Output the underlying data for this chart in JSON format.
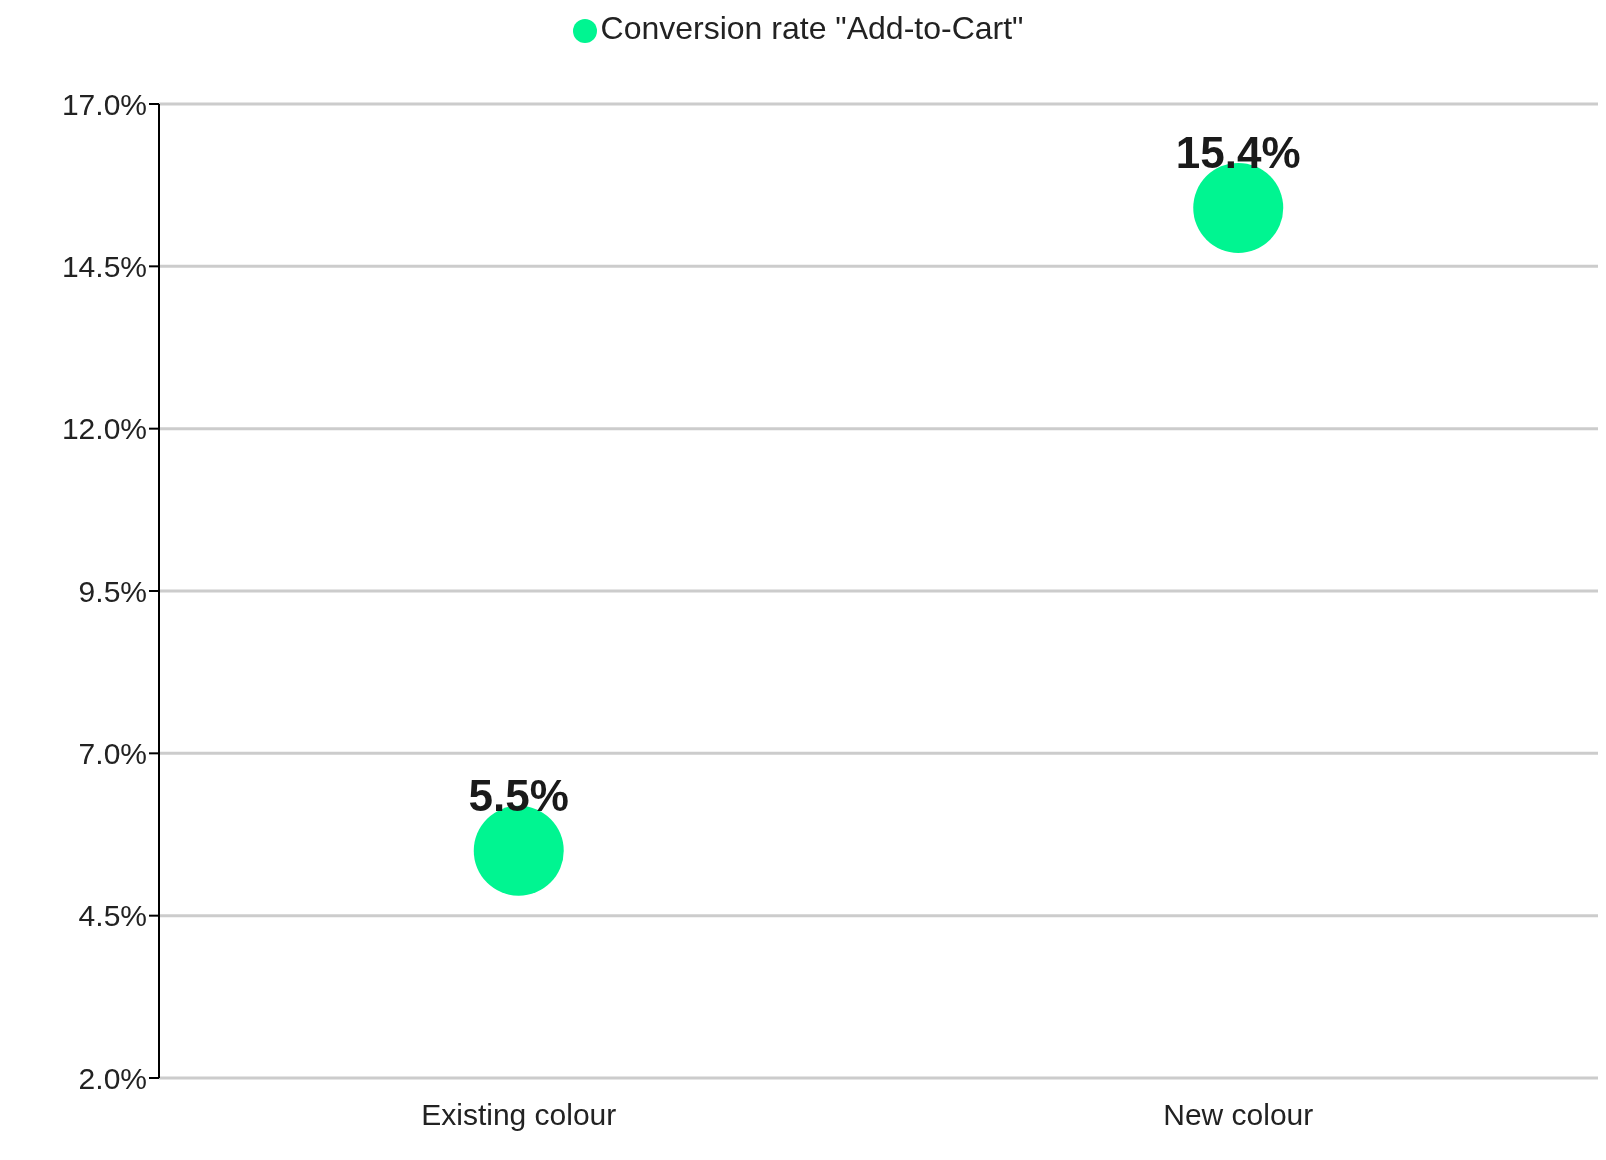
{
  "chart_data": {
    "type": "scatter",
    "categories": [
      "Existing colour",
      "New colour"
    ],
    "series": [
      {
        "name": "Conversion rate \"Add-to-Cart\"",
        "color": "#00f591",
        "values": [
          5.5,
          15.4
        ],
        "value_labels": [
          "5.5%",
          "15.4%"
        ]
      }
    ],
    "ylim": [
      2,
      17
    ],
    "yticks": [
      {
        "value": 2,
        "label": "2.0%"
      },
      {
        "value": 4.5,
        "label": "4.5%"
      },
      {
        "value": 7,
        "label": "7.0%"
      },
      {
        "value": 9.5,
        "label": "9.5%"
      },
      {
        "value": 12,
        "label": "12.0%"
      },
      {
        "value": 14.5,
        "label": "14.5%"
      },
      {
        "value": 17,
        "label": "17.0%"
      }
    ],
    "grid": "y",
    "legend": "top",
    "marker": "circle"
  }
}
